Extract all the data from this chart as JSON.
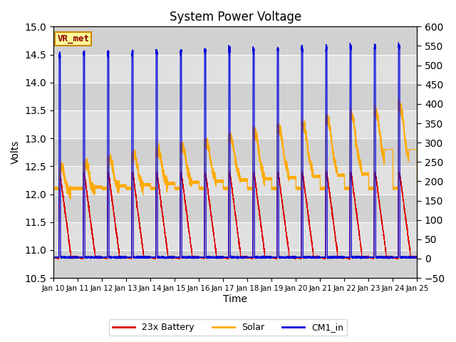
{
  "title": "System Power Voltage",
  "xlabel": "Time",
  "ylabel_left": "Volts",
  "ylim_left": [
    10.5,
    15.0
  ],
  "ylim_right": [
    -50,
    600
  ],
  "x_start": 10,
  "x_end": 25,
  "x_ticks": [
    10,
    11,
    12,
    13,
    14,
    15,
    16,
    17,
    18,
    19,
    20,
    21,
    22,
    23,
    24,
    25
  ],
  "x_tick_labels": [
    "Jan 10",
    "Jan 11",
    "Jan 12",
    "Jan 13",
    "Jan 14",
    "Jan 15",
    "Jan 16",
    "Jan 17",
    "Jan 18",
    "Jan 19",
    "Jan 20",
    "Jan 21",
    "Jan 22",
    "Jan 23",
    "Jan 24",
    "Jan 25"
  ],
  "yticks_left": [
    10.5,
    11.0,
    11.5,
    12.0,
    12.5,
    13.0,
    13.5,
    14.0,
    14.5,
    15.0
  ],
  "yticks_right": [
    -50,
    0,
    50,
    100,
    150,
    200,
    250,
    300,
    350,
    400,
    450,
    500,
    550,
    600
  ],
  "legend_labels": [
    "23x Battery",
    "Solar",
    "CM1_in"
  ],
  "legend_colors": [
    "#dd0000",
    "#ffaa00",
    "#0000dd"
  ],
  "battery_color": "#dd0000",
  "solar_color": "#ffaa00",
  "cm1_color": "#0000dd",
  "background_color": "#ffffff",
  "plot_bg_color": "#d8d8d8",
  "grid_color": "#ffffff",
  "annotation_text": "VR_met",
  "annotation_bg": "#ffff99",
  "annotation_border": "#cc8800",
  "days": 15,
  "night_voltage": 10.87,
  "battery_day_base": 12.25,
  "solar_early_peak": 12.5,
  "solar_late_peak": 13.5,
  "cm1_peak": 14.65
}
